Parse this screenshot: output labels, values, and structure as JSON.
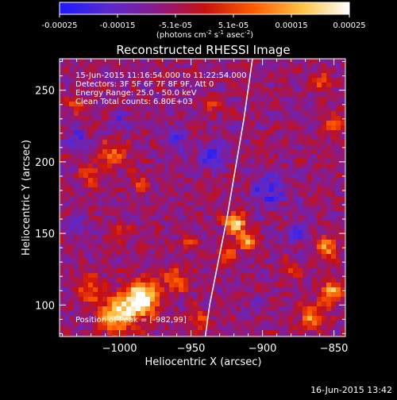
{
  "colorbar": {
    "ticks": [
      "-0.00025",
      "-0.00015",
      "-5.1e-05",
      "5.1e-05",
      "0.00015",
      "0.00025"
    ],
    "units_html": "(photons cm<tspan baseline-shift='super' font-size='7'>-2</tspan> s<tspan baseline-shift='super' font-size='7'>-1</tspan> asec<tspan baseline-shift='super' font-size='7'>-2</tspan>)",
    "range": [
      -0.00025,
      0.00025
    ],
    "stops": [
      "#1a1aff",
      "#5a2ad0",
      "#8a1a8a",
      "#c81010",
      "#ff5a00",
      "#ffc040",
      "#ffffff"
    ]
  },
  "chart_data": {
    "type": "heatmap",
    "title": "Reconstructed RHESSI Image",
    "xlabel": "Heliocentric X (arcsec)",
    "ylabel": "Heliocentric Y (arcsec)",
    "xlim": [
      -1042,
      -842
    ],
    "ylim": [
      78,
      272
    ],
    "xticks": [
      -1000,
      -950,
      -900,
      -850
    ],
    "xtick_labels": [
      "−1000",
      "−950",
      "−900",
      "−850"
    ],
    "yticks": [
      100,
      150,
      200,
      250
    ],
    "yticks_labels": [
      "100",
      "150",
      "200",
      "250"
    ],
    "grid": false,
    "peak_position": [
      -982,
      99
    ],
    "hot_regions": [
      {
        "x": -985,
        "y": 104,
        "sigma": 12,
        "amp": 1.25
      },
      {
        "x": -1002,
        "y": 93,
        "sigma": 12,
        "amp": 0.95
      },
      {
        "x": -961,
        "y": 118,
        "sigma": 8,
        "amp": 0.65
      },
      {
        "x": -1020,
        "y": 110,
        "sigma": 9,
        "amp": 0.55
      },
      {
        "x": -919,
        "y": 157,
        "sigma": 7,
        "amp": 1.05
      },
      {
        "x": -911,
        "y": 145,
        "sigma": 6,
        "amp": 0.75
      },
      {
        "x": -924,
        "y": 135,
        "sigma": 6,
        "amp": 0.55
      },
      {
        "x": -952,
        "y": 143,
        "sigma": 5,
        "amp": 0.45
      },
      {
        "x": -1005,
        "y": 205,
        "sigma": 9,
        "amp": 0.55
      },
      {
        "x": -1020,
        "y": 190,
        "sigma": 7,
        "amp": 0.45
      },
      {
        "x": -852,
        "y": 108,
        "sigma": 8,
        "amp": 0.8
      },
      {
        "x": -866,
        "y": 92,
        "sigma": 8,
        "amp": 0.65
      },
      {
        "x": -855,
        "y": 140,
        "sigma": 7,
        "amp": 0.65
      },
      {
        "x": -850,
        "y": 225,
        "sigma": 7,
        "amp": 0.55
      },
      {
        "x": -858,
        "y": 255,
        "sigma": 6,
        "amp": 0.5
      },
      {
        "x": -945,
        "y": 90,
        "sigma": 7,
        "amp": 0.45
      },
      {
        "x": -1000,
        "y": 150,
        "sigma": 6,
        "amp": 0.4
      },
      {
        "x": -985,
        "y": 185,
        "sigma": 6,
        "amp": 0.45
      },
      {
        "x": -1030,
        "y": 240,
        "sigma": 6,
        "amp": 0.45
      },
      {
        "x": -935,
        "y": 240,
        "sigma": 6,
        "amp": 0.35
      },
      {
        "x": -880,
        "y": 125,
        "sigma": 6,
        "amp": 0.4
      }
    ],
    "cold_regions": [
      {
        "x": -895,
        "y": 180,
        "sigma": 12,
        "amp": 0.6
      },
      {
        "x": -935,
        "y": 205,
        "sigma": 10,
        "amp": 0.5
      },
      {
        "x": -1030,
        "y": 215,
        "sigma": 7,
        "amp": 0.55
      },
      {
        "x": -960,
        "y": 215,
        "sigma": 8,
        "amp": 0.45
      },
      {
        "x": -875,
        "y": 150,
        "sigma": 7,
        "amp": 0.55
      },
      {
        "x": -1000,
        "y": 230,
        "sigma": 7,
        "amp": 0.4
      },
      {
        "x": -905,
        "y": 100,
        "sigma": 6,
        "amp": 0.35
      },
      {
        "x": -1030,
        "y": 155,
        "sigma": 6,
        "amp": 0.35
      }
    ],
    "limb_curve": [
      [
        -940,
        78
      ],
      [
        -937,
        100
      ],
      [
        -932,
        125
      ],
      [
        -925,
        160
      ],
      [
        -919,
        195
      ],
      [
        -913,
        230
      ],
      [
        -907,
        272
      ]
    ]
  },
  "info": {
    "lines": [
      "15-Jun-2015 11:16:54.000 to 11:22:54.000",
      "Detectors: 3F 5F 6F 7F 8F 9F, Att 0",
      "Energy Range: 25.0 - 50.0 keV",
      "Clean     Total counts: 6.80E+03"
    ],
    "peak_label": "Position of Peak = [-982,99]"
  },
  "footer": {
    "timestamp": "16-Jun-2015 13:42"
  }
}
